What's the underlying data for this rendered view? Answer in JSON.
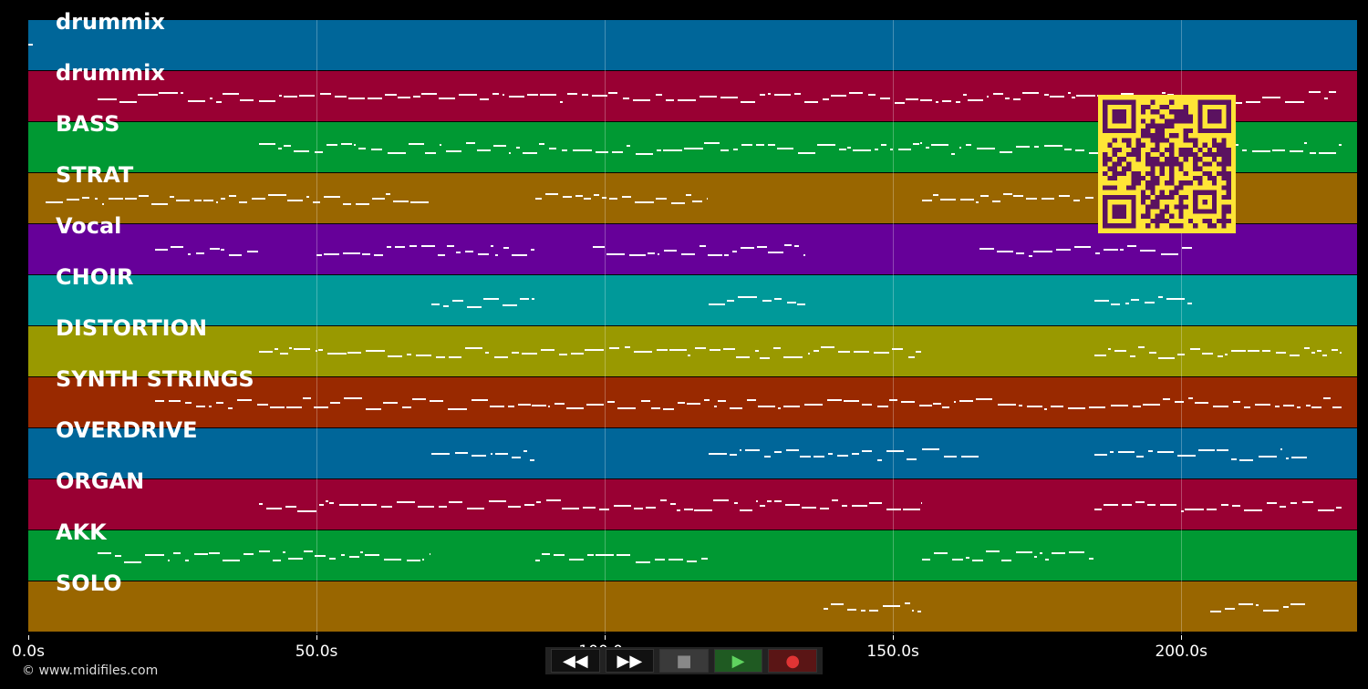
{
  "tracks": [
    {
      "name": "drummix",
      "color": "#006699"
    },
    {
      "name": "drummix",
      "color": "#990033"
    },
    {
      "name": "BASS",
      "color": "#009933"
    },
    {
      "name": "STRAT",
      "color": "#996600"
    },
    {
      "name": "Vocal",
      "color": "#660099"
    },
    {
      "name": "CHOIR",
      "color": "#009999"
    },
    {
      "name": "DISTORTION",
      "color": "#999900"
    },
    {
      "name": "SYNTH STRINGS",
      "color": "#992900"
    },
    {
      "name": "OVERDRIVE",
      "color": "#006699"
    },
    {
      "name": "ORGAN",
      "color": "#990033"
    },
    {
      "name": "AKK",
      "color": "#009933"
    },
    {
      "name": "SOLO",
      "color": "#996600"
    }
  ],
  "time_axis": {
    "ticks": [
      "0.0s",
      "50.0s",
      "100.0s",
      "150.0s",
      "200.0s"
    ],
    "tick_seconds": [
      0,
      50,
      100,
      150,
      200
    ],
    "max_seconds": 230.5
  },
  "transport": {
    "rewind": "◀◀",
    "forward": "▶▶",
    "stop": "■",
    "play": "▶",
    "record": "●"
  },
  "copyright": "© www.midifiles.com",
  "qr": {
    "color": "#ffe536",
    "dark": "#5b1260"
  }
}
